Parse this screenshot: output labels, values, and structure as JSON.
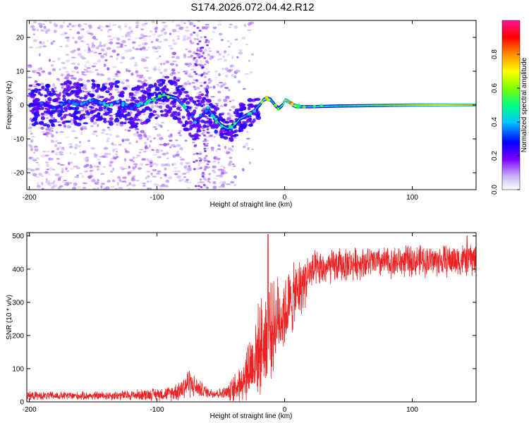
{
  "title": "S174.2026.072.04.42.R12",
  "chart_data": [
    {
      "type": "heatmap",
      "name": "spectrogram",
      "xlabel": "Height of straight line (km)",
      "ylabel": "Frequency (Hz)",
      "xlim": [
        -202,
        150
      ],
      "ylim": [
        -25,
        25
      ],
      "xticks": [
        -200,
        -100,
        0,
        100
      ],
      "yticks": [
        20,
        10,
        0,
        -10,
        -20
      ],
      "colorbar": {
        "label": "Normalized spectral amplitude",
        "range": [
          0,
          1
        ],
        "ticks": [
          0.0,
          0.2,
          0.4,
          0.6,
          0.8
        ],
        "tick_labels": [
          "0.0",
          "0.2",
          "0.4",
          "0.6",
          "0.8"
        ],
        "colormap": [
          "#ffffff",
          "#c9b2f2",
          "#7b00ff",
          "#0000ff",
          "#00c8ff",
          "#00ff7f",
          "#7fff00",
          "#ffff00",
          "#ff8c00",
          "#ff0000",
          "#ff1493"
        ]
      },
      "ridge": {
        "x": [
          -200,
          -190,
          -180,
          -170,
          -160,
          -150,
          -140,
          -130,
          -120,
          -110,
          -100,
          -95,
          -90,
          -85,
          -80,
          -75,
          -70,
          -65,
          -60,
          -55,
          -50,
          -45,
          -40,
          -35,
          -30,
          -25,
          -20,
          -17,
          -14,
          -11,
          -8,
          -5,
          -2,
          0,
          3,
          6,
          10,
          20,
          40,
          60,
          80,
          100,
          120,
          150
        ],
        "y": [
          0,
          0.5,
          -1,
          1,
          0,
          1.5,
          0,
          1,
          -1,
          0.5,
          2,
          3,
          2.5,
          2,
          0,
          -2.5,
          -5,
          -3,
          -1,
          -4,
          -6,
          -7,
          -6,
          -4,
          -3,
          -2,
          0,
          1.5,
          2,
          1.5,
          0,
          -1,
          0,
          1.5,
          1,
          0,
          -0.5,
          -0.5,
          -0.3,
          -0.2,
          -0.1,
          0,
          0,
          0
        ],
        "amp": [
          0.25,
          0.25,
          0.28,
          0.25,
          0.3,
          0.3,
          0.35,
          0.3,
          0.3,
          0.35,
          0.45,
          0.5,
          0.5,
          0.4,
          0.35,
          0.3,
          0.3,
          0.3,
          0.35,
          0.4,
          0.45,
          0.45,
          0.45,
          0.45,
          0.35,
          0.35,
          0.5,
          0.6,
          0.65,
          0.55,
          0.5,
          0.5,
          0.6,
          0.75,
          0.8,
          0.7,
          0.45,
          0.4,
          0.5,
          0.55,
          0.6,
          0.65,
          0.7,
          0.8
        ]
      },
      "noise_band": {
        "x": [
          -200,
          -40
        ],
        "spread_hz": 25,
        "column_x": -65
      }
    },
    {
      "type": "line",
      "name": "snr",
      "xlabel": "Height of straight line (km)",
      "ylabel": "SNR (10 * v/v)",
      "xlim": [
        -202,
        150
      ],
      "ylim": [
        0,
        510
      ],
      "xticks": [
        -200,
        -100,
        0,
        100
      ],
      "yticks": [
        0,
        100,
        200,
        300,
        400,
        500
      ],
      "color": "#ee2222",
      "envelope": {
        "x": [
          -202,
          -150,
          -120,
          -90,
          -80,
          -75,
          -70,
          -60,
          -50,
          -45,
          -40,
          -35,
          -30,
          -25,
          -20,
          -15,
          -10,
          -5,
          0,
          5,
          10,
          15,
          20,
          30,
          40,
          60,
          80,
          100,
          120,
          150
        ],
        "mean": [
          18,
          18,
          20,
          25,
          40,
          60,
          45,
          28,
          25,
          28,
          35,
          60,
          90,
          120,
          160,
          190,
          220,
          250,
          270,
          300,
          330,
          360,
          390,
          400,
          410,
          420,
          420,
          425,
          425,
          430
        ],
        "amp": [
          12,
          12,
          15,
          20,
          35,
          45,
          30,
          15,
          15,
          20,
          40,
          60,
          90,
          110,
          130,
          140,
          130,
          120,
          110,
          100,
          90,
          80,
          60,
          50,
          50,
          45,
          45,
          45,
          45,
          50
        ]
      },
      "spikes": [
        {
          "x": -13,
          "y": 505
        },
        {
          "x": -12,
          "y": 330
        },
        {
          "x": 143,
          "y": 500
        }
      ]
    }
  ]
}
